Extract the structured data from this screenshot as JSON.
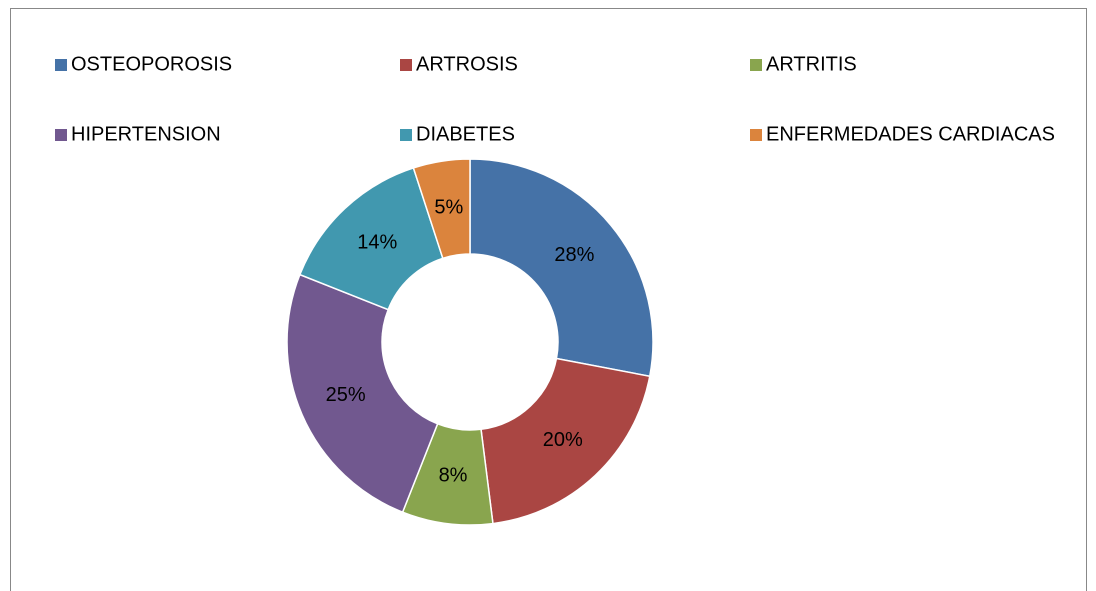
{
  "chart_data": {
    "type": "donut",
    "categories": [
      "OSTEOPOROSIS",
      "ARTROSIS",
      "ARTRITIS",
      "HIPERTENSION",
      "DIABETES",
      "ENFERMEDADES CARDIACAS"
    ],
    "values": [
      28,
      20,
      8,
      25,
      14,
      5
    ],
    "value_labels": [
      "28%",
      "20%",
      "8%",
      "25%",
      "14%",
      "5%"
    ],
    "colors": [
      "#4572a7",
      "#aa4643",
      "#89a54e",
      "#71588f",
      "#4198af",
      "#db843d"
    ],
    "legend": "top"
  }
}
